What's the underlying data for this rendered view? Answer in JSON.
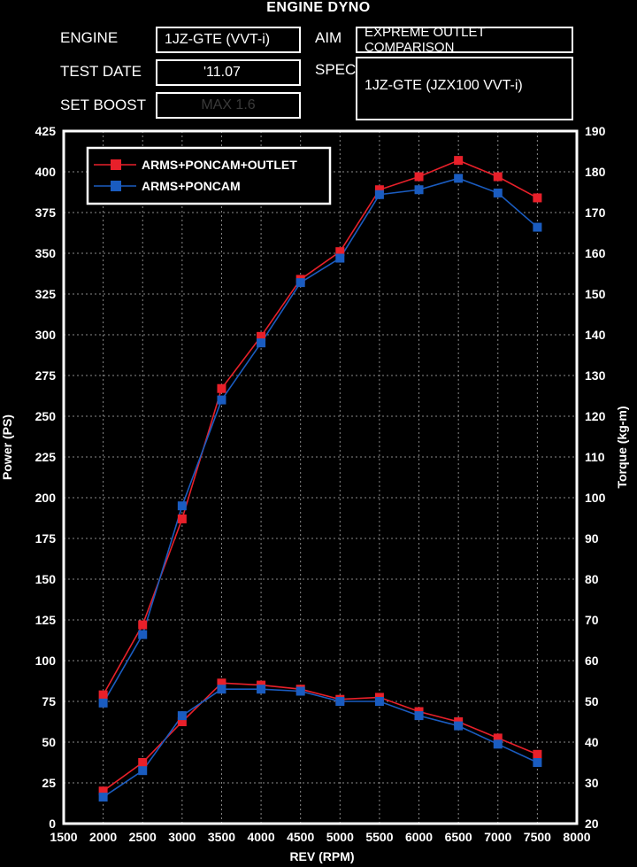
{
  "header": {
    "title": "ENGINE DYNO",
    "engine_label": "ENGINE",
    "engine_value": "1JZ-GTE (VVT-i)",
    "test_date_label": "TEST DATE",
    "test_date_value": "'11.07",
    "set_boost_label": "SET BOOST",
    "set_boost_value": "MAX 1.6",
    "aim_label": "AIM",
    "aim_value": "EXPREME OUTLET COMPARISON",
    "spec_label": "SPEC",
    "spec_value": "1JZ-GTE (JZX100 VVT-i)"
  },
  "chart_data": {
    "type": "line",
    "xlabel": "REV (RPM)",
    "ylabel": "Power (PS)",
    "y2label": "Torque (kg-m)",
    "xlim": [
      1500,
      8000
    ],
    "ylim": [
      0,
      425
    ],
    "y2lim": [
      20,
      190
    ],
    "xticks": [
      1500,
      2000,
      2500,
      3000,
      3500,
      4000,
      4500,
      5000,
      5500,
      6000,
      6500,
      7000,
      7500,
      8000
    ],
    "yticks": [
      0,
      25,
      50,
      75,
      100,
      125,
      150,
      175,
      200,
      225,
      250,
      275,
      300,
      325,
      350,
      375,
      400,
      425
    ],
    "y2ticks": [
      20,
      30,
      40,
      50,
      60,
      70,
      80,
      90,
      100,
      110,
      120,
      130,
      140,
      150,
      160,
      170,
      180,
      190
    ],
    "grid": true,
    "legend_position": "top-left",
    "x": [
      2000,
      2500,
      3000,
      3500,
      4000,
      4500,
      5000,
      5500,
      6000,
      6500,
      7000,
      7500
    ],
    "series": [
      {
        "name": "ARMS+PONCAM+OUTLET",
        "quantity": "power",
        "axis": "left",
        "color": "#e8202a",
        "values": [
          79,
          122,
          187,
          267,
          299,
          334,
          351,
          389,
          397,
          407,
          397,
          384
        ]
      },
      {
        "name": "ARMS+PONCAM",
        "quantity": "power",
        "axis": "left",
        "color": "#1a5cc0",
        "values": [
          74,
          116,
          195,
          260,
          295,
          332,
          347,
          386,
          389,
          396,
          387,
          366
        ]
      },
      {
        "name": "ARMS+PONCAM+OUTLET",
        "quantity": "torque",
        "axis": "right",
        "color": "#e8202a",
        "values": [
          28,
          35,
          45,
          54.5,
          54,
          53,
          50.5,
          51,
          47.5,
          45,
          41,
          37
        ]
      },
      {
        "name": "ARMS+PONCAM",
        "quantity": "torque",
        "axis": "right",
        "color": "#1a5cc0",
        "values": [
          26.5,
          33,
          46.5,
          53,
          53,
          52.5,
          50,
          50,
          46.5,
          44,
          39.5,
          35
        ]
      }
    ]
  }
}
